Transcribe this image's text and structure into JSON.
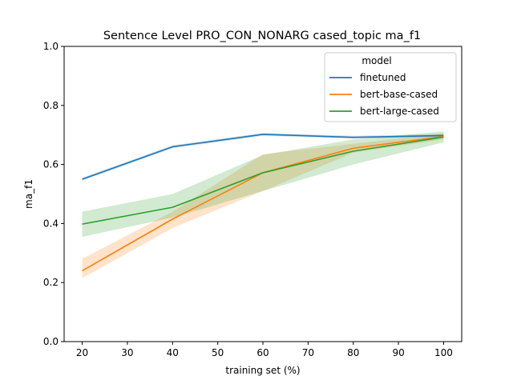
{
  "chart_data": {
    "type": "line",
    "title": "Sentence Level PRO_CON_NONARG cased_topic ma_f1",
    "xlabel": "training set (%)",
    "ylabel": "ma_f1",
    "xlim": [
      16,
      104
    ],
    "ylim": [
      0.0,
      1.0
    ],
    "xticks": [
      20,
      30,
      40,
      50,
      60,
      70,
      80,
      90,
      100
    ],
    "yticks": [
      0.0,
      0.2,
      0.4,
      0.6,
      0.8,
      1.0
    ],
    "xtick_labels": [
      "20",
      "30",
      "40",
      "50",
      "60",
      "70",
      "80",
      "90",
      "100"
    ],
    "ytick_labels": [
      "0.0",
      "0.2",
      "0.4",
      "0.6",
      "0.8",
      "1.0"
    ],
    "grid": false,
    "legend": {
      "title": "model",
      "position": "top-right"
    },
    "x": [
      20,
      40,
      60,
      80,
      100
    ],
    "series": [
      {
        "name": "finetuned",
        "color": "#1f77b4",
        "values": [
          0.55,
          0.66,
          0.702,
          0.692,
          0.698
        ],
        "lower": [
          0.545,
          0.655,
          0.697,
          0.688,
          0.693
        ],
        "upper": [
          0.555,
          0.665,
          0.707,
          0.697,
          0.703
        ]
      },
      {
        "name": "bert-base-cased",
        "color": "#ff7f0e",
        "values": [
          0.24,
          0.415,
          0.572,
          0.655,
          0.695
        ],
        "lower": [
          0.215,
          0.385,
          0.51,
          0.64,
          0.685
        ],
        "upper": [
          0.28,
          0.44,
          0.635,
          0.67,
          0.705
        ]
      },
      {
        "name": "bert-large-cased",
        "color": "#2ca02c",
        "values": [
          0.398,
          0.455,
          0.572,
          0.645,
          0.693
        ],
        "lower": [
          0.355,
          0.42,
          0.51,
          0.6,
          0.675
        ],
        "upper": [
          0.44,
          0.5,
          0.632,
          0.685,
          0.712
        ]
      }
    ]
  }
}
